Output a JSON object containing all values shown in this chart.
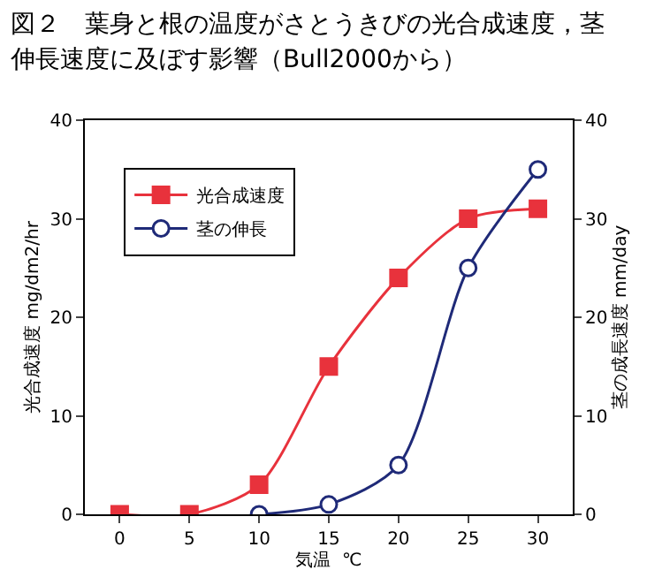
{
  "chart_data": {
    "type": "line",
    "title": "図２　葉身と根の温度がさとうきびの光合成速度，茎伸長速度に及ぼす影響（Bull2000から）",
    "xlabel": "気温  ℃",
    "ylabel": "光合成速度 mg/dm2/hr",
    "y2label": "茎の成長速度 mm/day",
    "series": [
      {
        "name": "光合成速度",
        "color": "#e8323c",
        "marker": "square",
        "x": [
          0,
          5,
          10,
          15,
          20,
          25,
          30
        ],
        "values": [
          0,
          0,
          3,
          15,
          24,
          30,
          31
        ]
      },
      {
        "name": "茎の伸長",
        "color": "#1f2a78",
        "marker": "circle",
        "axis": "y2",
        "x": [
          10,
          15,
          20,
          25,
          30
        ],
        "values": [
          0,
          1,
          5,
          25,
          35
        ]
      }
    ],
    "xlim": [
      -2.5,
      32.5
    ],
    "xticks": [
      0,
      5,
      10,
      15,
      20,
      25,
      30
    ],
    "ylim": [
      0,
      40
    ],
    "yticks": [
      0,
      10,
      20,
      30,
      40
    ],
    "y2lim": [
      0,
      40
    ],
    "y2ticks": [
      0,
      10,
      20,
      30,
      40
    ],
    "grid": false,
    "legend": "top left",
    "line_style": "solid"
  }
}
